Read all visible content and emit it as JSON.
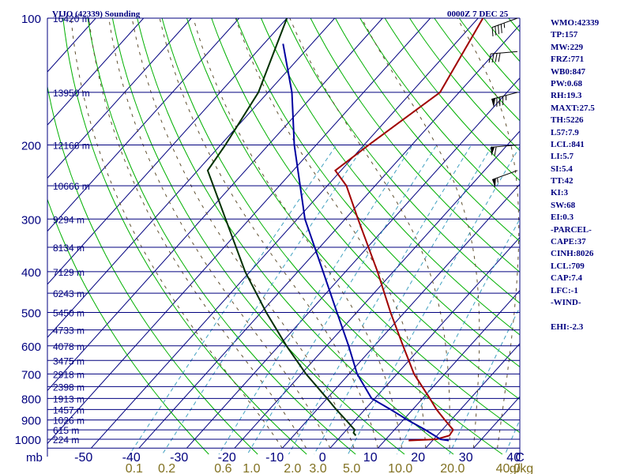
{
  "header": {
    "station": "VIJO (42339) Sounding",
    "time": "0000Z  7 DEC 25"
  },
  "chart_data": {
    "type": "skew-t log-p",
    "title": "VIJO (42339) Sounding",
    "valid_time": "0000Z  7 DEC 25",
    "pressure_axis_label": "mb",
    "pressure_ticks": [
      100,
      200,
      300,
      400,
      500,
      600,
      700,
      800,
      900,
      1000
    ],
    "height_labels": [
      {
        "p": 100,
        "label": "16420 m"
      },
      {
        "p": 150,
        "label": "13950 m"
      },
      {
        "p": 200,
        "label": "12166 m"
      },
      {
        "p": 250,
        "label": "10666 m"
      },
      {
        "p": 300,
        "label": "9294 m"
      },
      {
        "p": 350,
        "label": "8134 m"
      },
      {
        "p": 400,
        "label": "7129 m"
      },
      {
        "p": 450,
        "label": "6243 m"
      },
      {
        "p": 500,
        "label": "5450 m"
      },
      {
        "p": 550,
        "label": "4733 m"
      },
      {
        "p": 600,
        "label": "4078 m"
      },
      {
        "p": 650,
        "label": "3475 m"
      },
      {
        "p": 700,
        "label": "2918 m"
      },
      {
        "p": 750,
        "label": "2398 m"
      },
      {
        "p": 800,
        "label": "1913 m"
      },
      {
        "p": 850,
        "label": "1457 m"
      },
      {
        "p": 900,
        "label": "1026 m"
      },
      {
        "p": 950,
        "label": "615 m"
      },
      {
        "p": 1000,
        "label": "224 m"
      }
    ],
    "temperature_ticks": [
      {
        "value": -50,
        "label": "-50"
      },
      {
        "value": -40,
        "label": "-40"
      },
      {
        "value": -30,
        "label": "-30"
      },
      {
        "value": -20,
        "label": "-20"
      },
      {
        "value": -10,
        "label": "-10"
      },
      {
        "value": 0,
        "label": "0"
      },
      {
        "value": 10,
        "label": "10"
      },
      {
        "value": 20,
        "label": "20"
      },
      {
        "value": 30,
        "label": "30"
      },
      {
        "value": 40,
        "label": "40"
      }
    ],
    "temperature_unit": "C",
    "mixing_ratio_ticks": [
      {
        "w": 0.1,
        "label": "0.1"
      },
      {
        "w": 0.2,
        "label": "0.2"
      },
      {
        "w": 0.6,
        "label": "0.6"
      },
      {
        "w": 1.0,
        "label": "1.0"
      },
      {
        "w": 2.0,
        "label": "2.0"
      },
      {
        "w": 3.0,
        "label": "3.0"
      },
      {
        "w": 5.0,
        "label": "5.0"
      },
      {
        "w": 10.0,
        "label": "10.0"
      },
      {
        "w": 20.0,
        "label": "20.0"
      },
      {
        "w": 40.0,
        "label": "40.0"
      }
    ],
    "mixing_ratio_unit": "g/kg",
    "series": [
      {
        "name": "temperature",
        "color": "#a00000",
        "points": [
          {
            "p": 1007,
            "t": 15.0
          },
          {
            "p": 1000,
            "t": 20.6
          },
          {
            "p": 980,
            "t": 22.6
          },
          {
            "p": 950,
            "t": 22.3
          },
          {
            "p": 900,
            "t": 18.7
          },
          {
            "p": 850,
            "t": 15.0
          },
          {
            "p": 800,
            "t": 11.5
          },
          {
            "p": 700,
            "t": 3.6
          },
          {
            "p": 600,
            "t": -4.0
          },
          {
            "p": 500,
            "t": -12.9
          },
          {
            "p": 400,
            "t": -23.3
          },
          {
            "p": 300,
            "t": -37.3
          },
          {
            "p": 250,
            "t": -46.0
          },
          {
            "p": 230,
            "t": -51.2
          },
          {
            "p": 200,
            "t": -49.0
          },
          {
            "p": 150,
            "t": -44.0
          },
          {
            "p": 100,
            "t": -49.0
          }
        ]
      },
      {
        "name": "dewpoint",
        "color": "#0000a0",
        "points": [
          {
            "p": 1007,
            "t": 23.4
          },
          {
            "p": 1000,
            "t": 21.4
          },
          {
            "p": 950,
            "t": 16.5
          },
          {
            "p": 900,
            "t": 10.9
          },
          {
            "p": 850,
            "t": 5.4
          },
          {
            "p": 800,
            "t": -0.7
          },
          {
            "p": 700,
            "t": -8.3
          },
          {
            "p": 600,
            "t": -15.4
          },
          {
            "p": 500,
            "t": -24.1
          },
          {
            "p": 400,
            "t": -34.7
          },
          {
            "p": 300,
            "t": -48.4
          },
          {
            "p": 200,
            "t": -64.6
          },
          {
            "p": 150,
            "t": -75.0
          },
          {
            "p": 115,
            "t": -86.0
          }
        ]
      },
      {
        "name": "parcel",
        "color": "#003000",
        "points": [
          {
            "p": 980,
            "t": 3.0
          },
          {
            "p": 965,
            "t": 2.0
          },
          {
            "p": 950,
            "t": 1.7
          },
          {
            "p": 900,
            "t": -2.0
          },
          {
            "p": 850,
            "t": -6.0
          },
          {
            "p": 800,
            "t": -10.0
          },
          {
            "p": 700,
            "t": -19.0
          },
          {
            "p": 600,
            "t": -28.4
          },
          {
            "p": 500,
            "t": -38.9
          },
          {
            "p": 400,
            "t": -51.0
          },
          {
            "p": 300,
            "t": -65.0
          },
          {
            "p": 230,
            "t": -77.9
          },
          {
            "p": 200,
            "t": -79.0
          },
          {
            "p": 150,
            "t": -82.0
          },
          {
            "p": 100,
            "t": -90.0
          }
        ]
      }
    ],
    "wind_barbs": [
      {
        "p": 100,
        "dir": 250,
        "kt": 45
      },
      {
        "p": 120,
        "dir": 265,
        "kt": 40
      },
      {
        "p": 150,
        "dir": 255,
        "kt": 85
      },
      {
        "p": 200,
        "dir": 265,
        "kt": 60
      },
      {
        "p": 230,
        "dir": 250,
        "kt": 55
      }
    ],
    "indices": [
      "WMO:42339",
      "TP:157",
      "MW:229",
      "FRZ:771",
      "WB0:847",
      "PW:0.68",
      "RH:19.3",
      "MAXT:27.5",
      "TH:5226",
      "L57:7.9",
      "LCL:841",
      "LI:5.7",
      "SI:5.4",
      "TT:42",
      "KI:3",
      "SW:68",
      "EI:0.3",
      "-PARCEL-",
      "CAPE:37",
      "CINH:8026",
      "LCL:709",
      "CAP:7.4",
      "LFC:-1",
      "-WIND-",
      "",
      "EHI:-2.3"
    ]
  },
  "colors": {
    "isobar": "#00007f",
    "isotherm": "#00007f",
    "dry_adiabat": "#00b000",
    "mixing_ratio": "#40a0c0",
    "moist_adiabat": "#605030",
    "axis_text": "#00007f",
    "mr_text": "#807020"
  }
}
